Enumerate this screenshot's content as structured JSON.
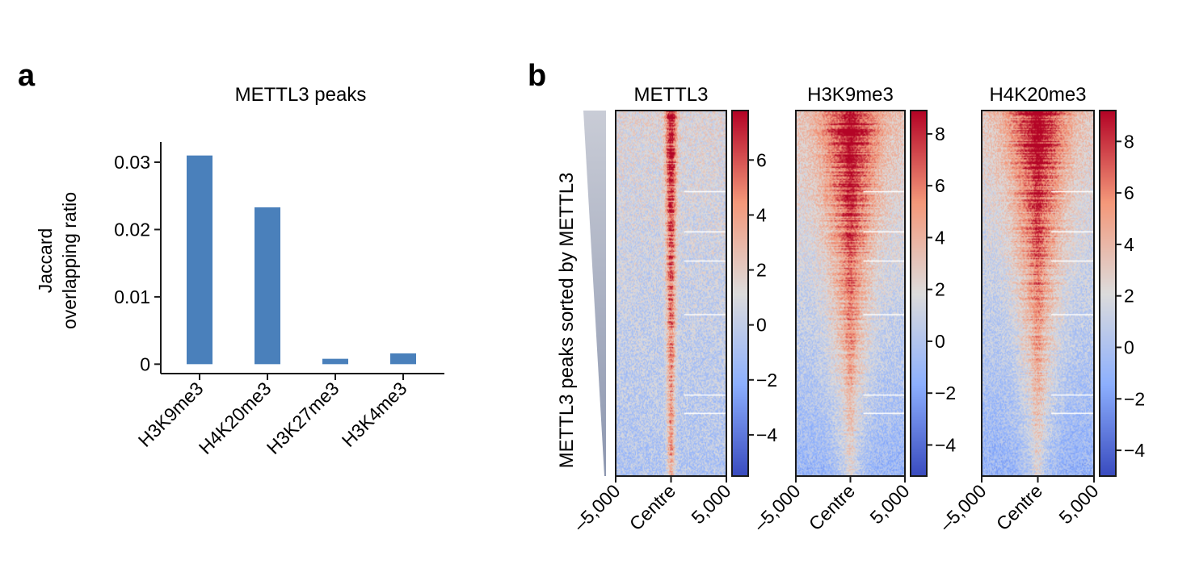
{
  "panels": {
    "a_label": "a",
    "b_label": "b"
  },
  "chart_data": [
    {
      "type": "bar",
      "title": "METTL3 peaks",
      "ylabel_lines": [
        "Jaccard",
        "overlapping ratio"
      ],
      "xlabel": "",
      "categories": [
        "H3K9me3",
        "H4K20me3",
        "H3K27me3",
        "H3K4me3"
      ],
      "values": [
        0.031,
        0.0233,
        0.0008,
        0.0016
      ],
      "ylim": [
        -0.0014,
        0.033
      ],
      "yticks": [
        0,
        0.01,
        0.02,
        0.03
      ],
      "ytick_labels": [
        "0",
        "0.01",
        "0.02",
        "0.03"
      ],
      "bar_color": "#4a80bb",
      "grid": false
    },
    {
      "type": "heatmap",
      "row_axis_label": "METTL3 peaks sorted by METTL3",
      "xtick_labels": [
        "–5,000",
        "Centre",
        "5,000"
      ],
      "colormap": [
        "#3a4cc0",
        "#8db0fe",
        "#dddcdc",
        "#f4987a",
        "#b40426"
      ],
      "panels": [
        {
          "title": "METTL3",
          "color_range": [
            -5.5,
            7.8
          ],
          "colorbar_ticks": [
            -4,
            -2,
            0,
            2,
            4,
            6
          ],
          "colorbar_tick_labels": [
            "−4",
            "−2",
            "0",
            "2",
            "4",
            "6"
          ]
        },
        {
          "title": "H3K9me3",
          "color_range": [
            -5.2,
            8.9
          ],
          "colorbar_ticks": [
            -4,
            -2,
            0,
            2,
            4,
            6,
            8
          ],
          "colorbar_tick_labels": [
            "−4",
            "−2",
            "0",
            "2",
            "4",
            "6",
            "8"
          ]
        },
        {
          "title": "H4K20me3",
          "color_range": [
            -5.0,
            9.2
          ],
          "colorbar_ticks": [
            -4,
            -2,
            0,
            2,
            4,
            6,
            8
          ],
          "colorbar_tick_labels": [
            "−4",
            "−2",
            "0",
            "2",
            "4",
            "6",
            "8"
          ]
        }
      ]
    }
  ]
}
